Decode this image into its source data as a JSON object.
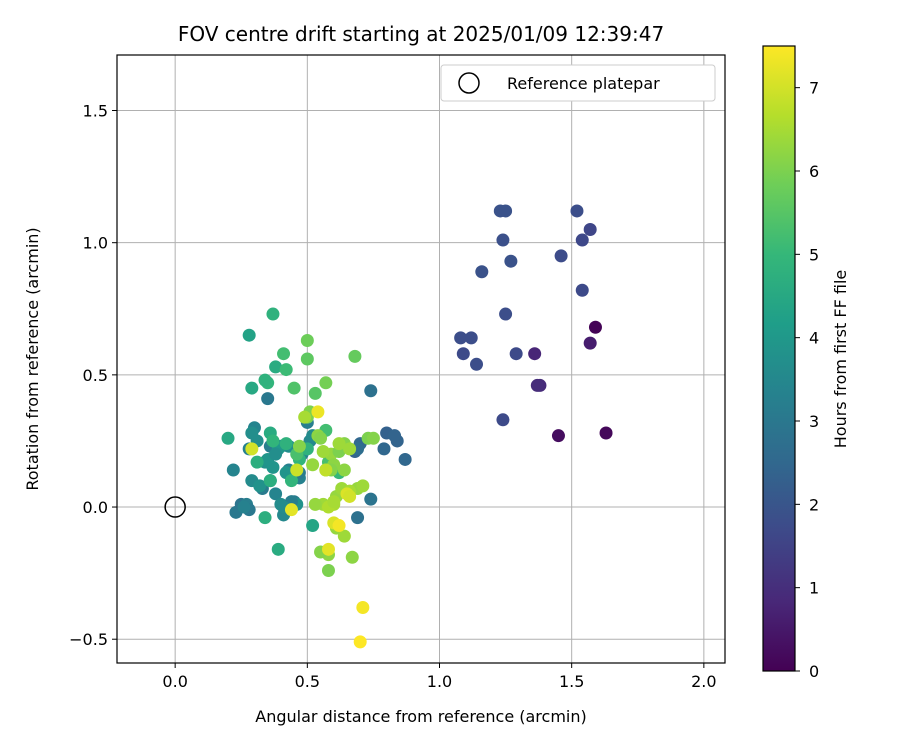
{
  "chart_data": {
    "type": "scatter",
    "title": "FOV centre drift starting at 2025/01/09 12:39:47",
    "xlabel": "Angular distance from reference (arcmin)",
    "ylabel": "Rotation from reference (arcmin)",
    "xlim": [
      -0.22,
      2.08
    ],
    "ylim": [
      -0.59,
      1.71
    ],
    "xticks": [
      0.0,
      0.5,
      1.0,
      1.5,
      2.0
    ],
    "xtick_labels": [
      "0.0",
      "0.5",
      "1.0",
      "1.5",
      "2.0"
    ],
    "yticks": [
      -0.5,
      0.0,
      0.5,
      1.0,
      1.5
    ],
    "ytick_labels": [
      "−0.5",
      "0.0",
      "0.5",
      "1.0",
      "1.5"
    ],
    "grid": true,
    "legend": {
      "label": "Reference platepar",
      "placement": "top-right"
    },
    "reference_point": {
      "x": 0.0,
      "y": 0.0
    },
    "colorbar": {
      "label": "Hours from first FF file",
      "range": [
        0,
        7.5
      ],
      "ticks": [
        0,
        1,
        2,
        3,
        4,
        5,
        6,
        7
      ],
      "colormap": "viridis",
      "stops": [
        "#440154",
        "#482878",
        "#3e4989",
        "#31688e",
        "#26828e",
        "#1f9e89",
        "#35b779",
        "#6ece58",
        "#b5de2b",
        "#fde725"
      ]
    },
    "series": [
      {
        "x": [
          1.59,
          1.63,
          1.45,
          1.57,
          1.36,
          1.38,
          1.37,
          1.24,
          1.29,
          1.14,
          1.09,
          1.08,
          1.12,
          1.25,
          1.16,
          1.27,
          1.24,
          1.23,
          1.25,
          1.46,
          1.52,
          1.57,
          1.54,
          1.54
        ],
        "y": [
          0.68,
          0.28,
          0.27,
          0.62,
          0.58,
          0.46,
          0.46,
          0.33,
          0.58,
          0.54,
          0.58,
          0.64,
          0.64,
          0.73,
          0.89,
          0.93,
          1.01,
          1.12,
          1.12,
          0.95,
          1.12,
          1.05,
          1.01,
          0.82
        ],
        "hours": [
          0.05,
          0.15,
          0.25,
          0.6,
          0.8,
          0.9,
          0.95,
          1.7,
          1.7,
          1.8,
          1.7,
          1.8,
          1.8,
          1.8,
          1.9,
          1.9,
          1.85,
          1.9,
          1.9,
          1.75,
          1.8,
          1.6,
          1.65,
          1.7
        ],
        "hour_note": ""
      },
      {
        "x": [
          0.74,
          0.87,
          0.84,
          0.8,
          0.83,
          0.79,
          0.7,
          0.68,
          0.69,
          0.74,
          0.69
        ],
        "y": [
          0.44,
          0.18,
          0.25,
          0.28,
          0.27,
          0.22,
          0.24,
          0.21,
          0.22,
          0.03,
          -0.04
        ],
        "hours": [
          2.8,
          2.5,
          2.4,
          2.3,
          2.4,
          2.5,
          2.5,
          2.4,
          2.7,
          2.9,
          2.8
        ]
      },
      {
        "x": [
          0.23,
          0.25,
          0.27,
          0.28,
          0.29,
          0.3,
          0.33,
          0.35,
          0.36,
          0.38,
          0.4,
          0.41,
          0.43,
          0.44,
          0.45,
          0.47,
          0.48,
          0.5,
          0.51,
          0.52,
          0.28,
          0.31,
          0.34,
          0.37,
          0.4,
          0.43,
          0.46,
          0.42,
          0.39,
          0.35,
          0.32,
          0.29,
          0.26,
          0.22,
          0.44,
          0.47,
          0.41,
          0.38,
          0.36
        ],
        "y": [
          -0.02,
          0.01,
          0.01,
          0.22,
          0.1,
          0.3,
          0.07,
          0.41,
          0.23,
          0.05,
          0.01,
          -0.03,
          0.14,
          0.02,
          0.02,
          0.11,
          0.2,
          0.32,
          0.25,
          0.27,
          -0.01,
          0.25,
          0.17,
          0.15,
          0.23,
          0.23,
          0.01,
          0.13,
          0.22,
          0.18,
          0.08,
          0.28,
          0.0,
          0.14,
          0.02,
          0.13,
          0.0,
          0.2,
          0.1
        ],
        "hours": [
          3.0,
          2.9,
          3.2,
          3.3,
          3.6,
          3.4,
          3.1,
          3.0,
          3.2,
          3.4,
          3.6,
          3.5,
          3.3,
          3.2,
          3.1,
          3.3,
          3.4,
          3.2,
          3.5,
          3.6,
          3.0,
          3.7,
          3.8,
          3.9,
          3.6,
          3.7,
          3.8,
          3.9,
          4.0,
          3.9,
          3.8,
          3.7,
          3.3,
          3.4,
          3.2,
          3.1,
          3.6,
          3.7,
          3.9
        ]
      },
      {
        "x": [
          0.28,
          0.2,
          0.37,
          0.38,
          0.41,
          0.35,
          0.36,
          0.34,
          0.42,
          0.44,
          0.52,
          0.36,
          0.39,
          0.31,
          0.29,
          0.42,
          0.5,
          0.47,
          0.57,
          0.58,
          0.62,
          0.34,
          0.37,
          0.46,
          0.45,
          0.53
        ],
        "y": [
          0.65,
          0.26,
          0.73,
          0.53,
          0.58,
          0.47,
          0.28,
          -0.04,
          0.24,
          0.1,
          -0.07,
          0.1,
          -0.16,
          0.17,
          0.45,
          0.52,
          0.22,
          0.18,
          0.29,
          0.17,
          0.13,
          0.48,
          0.25,
          0.2,
          0.45,
          0.43
        ],
        "hours": [
          4.3,
          4.5,
          4.8,
          4.6,
          5.2,
          4.9,
          4.6,
          4.7,
          4.8,
          4.9,
          4.4,
          4.7,
          4.6,
          4.7,
          4.5,
          5.1,
          4.8,
          4.9,
          5.2,
          5.3,
          5.0,
          4.8,
          4.9,
          5.3,
          5.4,
          5.5
        ]
      },
      {
        "x": [
          0.5,
          0.5,
          0.68,
          0.57,
          0.51,
          0.47,
          0.5,
          0.54,
          0.55,
          0.59,
          0.6,
          0.62,
          0.64,
          0.66,
          0.57,
          0.59,
          0.61,
          0.63,
          0.6,
          0.56,
          0.58,
          0.55,
          0.52,
          0.58,
          0.61,
          0.64,
          0.67,
          0.69,
          0.71,
          0.73,
          0.75,
          0.66,
          0.58,
          0.6,
          0.62,
          0.64,
          0.49,
          0.53,
          0.56
        ],
        "y": [
          0.63,
          0.56,
          0.57,
          0.47,
          0.36,
          0.23,
          0.34,
          0.27,
          0.26,
          0.2,
          0.16,
          0.21,
          0.24,
          0.22,
          0.14,
          0.14,
          0.04,
          0.07,
          0.01,
          0.01,
          -0.18,
          -0.17,
          0.16,
          -0.24,
          -0.08,
          -0.11,
          -0.19,
          0.07,
          0.08,
          0.26,
          0.26,
          0.06,
          0.0,
          0.02,
          0.24,
          0.14,
          0.34,
          0.01,
          0.21
        ],
        "hours": [
          5.8,
          5.6,
          5.7,
          5.9,
          6.0,
          6.1,
          6.0,
          6.2,
          6.1,
          6.3,
          6.2,
          6.0,
          6.1,
          6.4,
          6.2,
          6.1,
          6.3,
          6.4,
          6.5,
          6.4,
          6.2,
          6.1,
          6.3,
          6.0,
          6.3,
          6.4,
          6.2,
          6.3,
          6.4,
          6.0,
          6.1,
          6.5,
          6.6,
          6.5,
          6.4,
          6.2,
          6.5,
          6.3,
          6.4
        ]
      },
      {
        "x": [
          0.29,
          0.44,
          0.46,
          0.54,
          0.57,
          0.58,
          0.6,
          0.62,
          0.65,
          0.66,
          0.71,
          0.7
        ],
        "y": [
          0.22,
          -0.01,
          0.14,
          0.36,
          0.14,
          -0.16,
          -0.06,
          -0.07,
          0.05,
          0.04,
          -0.38,
          -0.51
        ],
        "hours": [
          7.0,
          7.2,
          6.9,
          7.3,
          6.8,
          7.2,
          7.1,
          7.4,
          7.1,
          7.0,
          7.4,
          7.5
        ]
      }
    ]
  }
}
